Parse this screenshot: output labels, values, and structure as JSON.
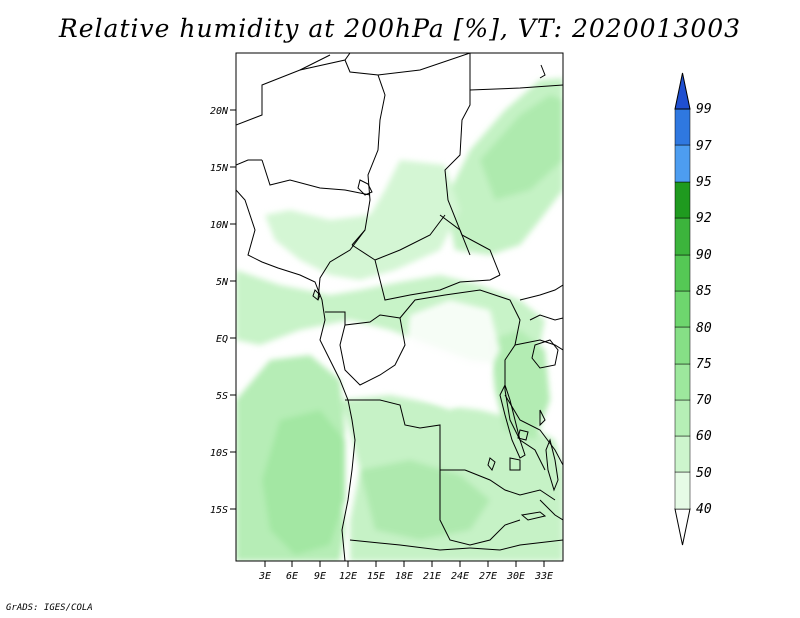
{
  "title": "Relative humidity at 200hPa [%], VT: 2020013003",
  "credit": "GrADS: IGES/COLA",
  "map": {
    "lat_labels": [
      "20N",
      "15N",
      "10N",
      "5N",
      "EQ",
      "5S",
      "10S",
      "15S"
    ],
    "lon_labels": [
      "3E",
      "6E",
      "9E",
      "12E",
      "15E",
      "18E",
      "21E",
      "24E",
      "27E",
      "30E",
      "33E"
    ],
    "lon_range": [
      0,
      35
    ],
    "lat_range": [
      -19.5,
      25
    ]
  },
  "legend": {
    "levels": [
      "40",
      "50",
      "60",
      "70",
      "75",
      "80",
      "85",
      "90",
      "92",
      "95",
      "97",
      "99"
    ],
    "colors": [
      "#e6fbe6",
      "#cdf5cd",
      "#b6efb6",
      "#9de89d",
      "#86df86",
      "#6ed66e",
      "#55c855",
      "#3cb43c",
      "#1f9a1f",
      "#4d9df0",
      "#2f78e0",
      "#1f4fd0"
    ]
  }
}
